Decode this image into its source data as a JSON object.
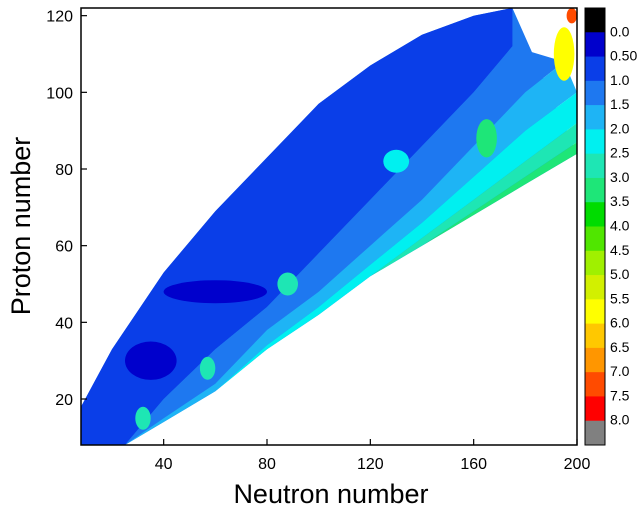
{
  "chart_data": {
    "type": "heatmap",
    "title": "",
    "xlabel": "Neutron number",
    "ylabel": "Proton number",
    "xlim": [
      8,
      200
    ],
    "ylim": [
      8,
      122
    ],
    "x_ticks": [
      40,
      80,
      120,
      160,
      200
    ],
    "x_tick_labels": [
      "40",
      "80",
      "120",
      "160",
      "200"
    ],
    "y_ticks": [
      20,
      40,
      60,
      80,
      100,
      120
    ],
    "y_tick_labels": [
      "20",
      "40",
      "60",
      "80",
      "100",
      "120"
    ],
    "grid": false,
    "colorbar": {
      "placement": "right",
      "levels": [
        {
          "label": "0.0",
          "color": "#000000"
        },
        {
          "label": "0.50",
          "color": "#0000cc"
        },
        {
          "label": "1.0",
          "color": "#0a3ee8"
        },
        {
          "label": "1.5",
          "color": "#1e78f0"
        },
        {
          "label": "2.0",
          "color": "#1eb4f5"
        },
        {
          "label": "2.5",
          "color": "#00f0f0"
        },
        {
          "label": "3.0",
          "color": "#1ee6b4"
        },
        {
          "label": "3.5",
          "color": "#1ee678"
        },
        {
          "label": "4.0",
          "color": "#00dc00"
        },
        {
          "label": "4.5",
          "color": "#50e600"
        },
        {
          "label": "5.0",
          "color": "#a0f000"
        },
        {
          "label": "5.5",
          "color": "#d2f000"
        },
        {
          "label": "6.0",
          "color": "#ffff00"
        },
        {
          "label": "6.5",
          "color": "#ffc800"
        },
        {
          "label": "7.0",
          "color": "#ff9600"
        },
        {
          "label": "7.5",
          "color": "#ff4b00"
        },
        {
          "label": "8.0",
          "color": "#ff0000"
        },
        {
          "label": "",
          "color": "#808080"
        }
      ]
    },
    "region": {
      "boundary_upper": [
        [
          8,
          18
        ],
        [
          20,
          33
        ],
        [
          40,
          53
        ],
        [
          60,
          69
        ],
        [
          80,
          83
        ],
        [
          100,
          97
        ],
        [
          120,
          107
        ],
        [
          140,
          115
        ],
        [
          160,
          120
        ],
        [
          175,
          122
        ]
      ],
      "boundary_lower": [
        [
          8,
          8
        ],
        [
          25,
          8
        ],
        [
          40,
          14
        ],
        [
          60,
          22
        ],
        [
          80,
          33
        ],
        [
          100,
          42
        ],
        [
          120,
          52
        ],
        [
          140,
          60
        ],
        [
          160,
          68
        ],
        [
          180,
          76
        ],
        [
          200,
          84
        ]
      ],
      "bands": [
        {
          "value": 1.0,
          "upper": [
            [
              8,
              18
            ],
            [
              20,
              33
            ],
            [
              40,
              53
            ],
            [
              60,
              69
            ],
            [
              80,
              83
            ],
            [
              100,
              97
            ],
            [
              120,
              107
            ],
            [
              140,
              115
            ],
            [
              160,
              120
            ],
            [
              175,
              122
            ]
          ],
          "lower": [
            [
              8,
              8
            ],
            [
              25,
              8
            ],
            [
              40,
              20
            ],
            [
              60,
              33
            ],
            [
              80,
              44
            ],
            [
              100,
              58
            ],
            [
              120,
              72
            ],
            [
              140,
              86
            ],
            [
              160,
              100
            ],
            [
              175,
              112
            ]
          ]
        },
        {
          "value": 1.5,
          "upper": [
            [
              8,
              8
            ],
            [
              25,
              8
            ],
            [
              40,
              20
            ],
            [
              60,
              33
            ],
            [
              80,
              44
            ],
            [
              100,
              58
            ],
            [
              120,
              72
            ],
            [
              140,
              86
            ],
            [
              160,
              100
            ],
            [
              175,
              112
            ]
          ],
          "lower": [
            [
              25,
              8
            ],
            [
              40,
              15
            ],
            [
              60,
              24
            ],
            [
              80,
              38
            ],
            [
              100,
              48
            ],
            [
              120,
              60
            ],
            [
              140,
              72
            ],
            [
              160,
              86
            ],
            [
              180,
              100
            ],
            [
              195,
              108
            ]
          ]
        },
        {
          "value": 2.0,
          "upper": [
            [
              25,
              8
            ],
            [
              40,
              15
            ],
            [
              60,
              24
            ],
            [
              80,
              38
            ],
            [
              100,
              48
            ],
            [
              120,
              60
            ],
            [
              140,
              72
            ],
            [
              160,
              86
            ],
            [
              180,
              100
            ],
            [
              195,
              108
            ]
          ],
          "lower": [
            [
              40,
              14
            ],
            [
              60,
              22
            ],
            [
              80,
              34
            ],
            [
              100,
              44
            ],
            [
              120,
              55
            ],
            [
              140,
              66
            ],
            [
              160,
              78
            ],
            [
              180,
              90
            ],
            [
              200,
              100
            ]
          ]
        },
        {
          "value": 2.5,
          "upper": [
            [
              40,
              14
            ],
            [
              60,
              22
            ],
            [
              80,
              34
            ],
            [
              100,
              44
            ],
            [
              120,
              55
            ],
            [
              140,
              66
            ],
            [
              160,
              78
            ],
            [
              180,
              90
            ],
            [
              200,
              100
            ]
          ],
          "lower": [
            [
              60,
              22
            ],
            [
              80,
              33
            ],
            [
              100,
              42
            ],
            [
              120,
              52
            ],
            [
              140,
              62
            ],
            [
              160,
              72
            ],
            [
              180,
              82
            ],
            [
              200,
              92
            ]
          ]
        },
        {
          "value": 3.0,
          "upper": [
            [
              100,
              42
            ],
            [
              120,
              52
            ],
            [
              140,
              62
            ],
            [
              160,
              72
            ],
            [
              180,
              82
            ],
            [
              200,
              92
            ]
          ],
          "lower": [
            [
              100,
              42
            ],
            [
              120,
              52
            ],
            [
              140,
              60
            ],
            [
              160,
              69
            ],
            [
              180,
              78
            ],
            [
              200,
              87
            ]
          ]
        },
        {
          "value": 3.5,
          "upper": [
            [
              140,
              60
            ],
            [
              160,
              69
            ],
            [
              180,
              78
            ],
            [
              200,
              87
            ]
          ],
          "lower": [
            [
              140,
              60
            ],
            [
              160,
              68
            ],
            [
              180,
              76
            ],
            [
              200,
              84
            ]
          ]
        }
      ],
      "patches": [
        {
          "value": 0.5,
          "center": [
            60,
            48
          ],
          "size": [
            40,
            6
          ]
        },
        {
          "value": 0.5,
          "center": [
            35,
            30
          ],
          "size": [
            20,
            10
          ]
        },
        {
          "value": 2.5,
          "center": [
            130,
            82
          ],
          "size": [
            10,
            6
          ]
        },
        {
          "value": 3.0,
          "center": [
            88,
            50
          ],
          "size": [
            8,
            6
          ]
        },
        {
          "value": 3.0,
          "center": [
            57,
            28
          ],
          "size": [
            6,
            6
          ]
        },
        {
          "value": 3.0,
          "center": [
            32,
            15
          ],
          "size": [
            6,
            6
          ]
        },
        {
          "value": 3.5,
          "center": [
            165,
            88
          ],
          "size": [
            8,
            10
          ]
        },
        {
          "value": 6.0,
          "center": [
            195,
            110
          ],
          "size": [
            8,
            14
          ]
        },
        {
          "value": 7.5,
          "center": [
            198,
            120
          ],
          "size": [
            4,
            4
          ]
        }
      ]
    }
  }
}
